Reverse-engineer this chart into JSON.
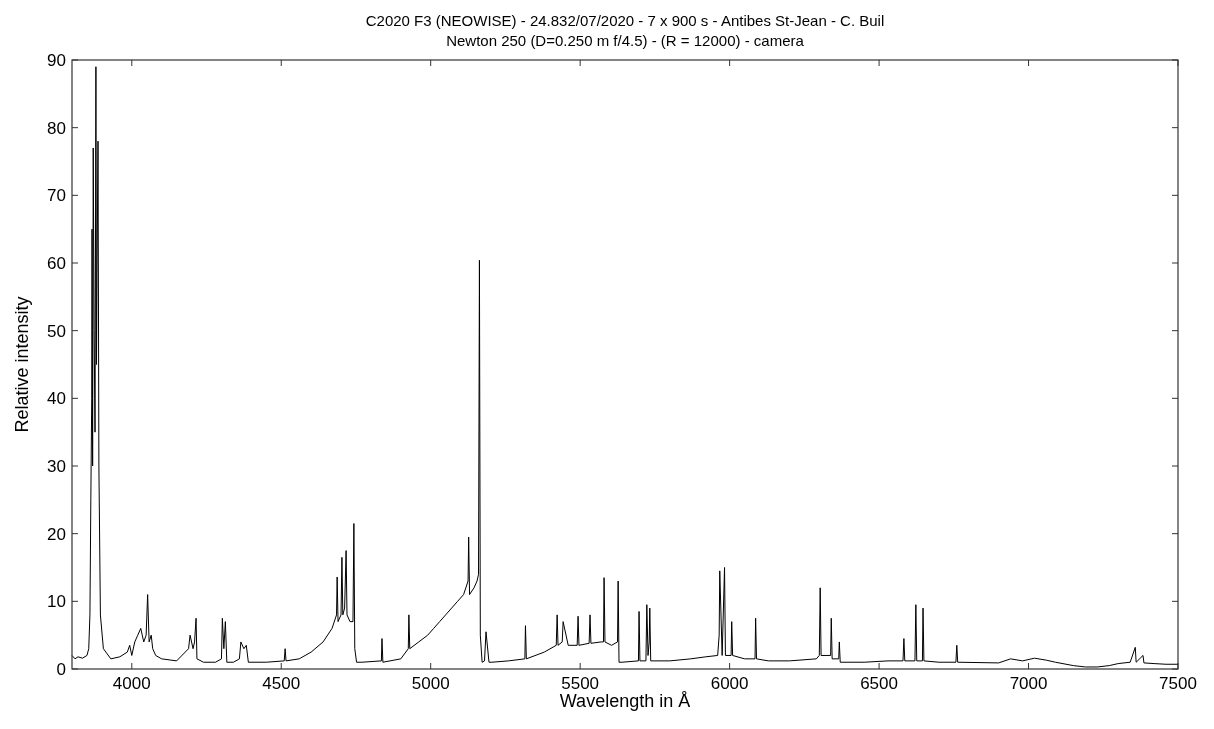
{
  "chart_data": {
    "type": "line",
    "title": "C2020 F3 (NEOWISE) - 24.832/07/2020 - 7 x 900 s - Antibes St-Jean - C. Buil",
    "subtitle": "Newton 250  (D=0.250 m f/4.5) - (R = 12000) - camera",
    "xlabel": "Wavelength in Å",
    "ylabel": "Relative intensity",
    "xlim": [
      3800,
      7500
    ],
    "ylim": [
      0,
      90
    ],
    "xticks": [
      4000,
      4500,
      5000,
      5500,
      6000,
      6500,
      7000,
      7500
    ],
    "yticks": [
      0,
      10,
      20,
      30,
      40,
      50,
      60,
      70,
      80,
      90
    ],
    "grid": false,
    "line_style": "solid",
    "series": [
      {
        "color": "#000000",
        "x": [
          3800,
          3810,
          3820,
          3835,
          3850,
          3856,
          3860,
          3863,
          3866,
          3867,
          3869,
          3871,
          3874,
          3877,
          3880,
          3882,
          3884,
          3887,
          3890,
          3895,
          3905,
          3930,
          3960,
          3985,
          3993,
          4000,
          4010,
          4020,
          4030,
          4040,
          4048,
          4053,
          4058,
          4065,
          4070,
          4080,
          4100,
          4150,
          4190,
          4195,
          4205,
          4210,
          4215,
          4218,
          4240,
          4280,
          4300,
          4303,
          4308,
          4313,
          4318,
          4340,
          4360,
          4365,
          4375,
          4383,
          4390,
          4450,
          4510,
          4513,
          4516,
          4560,
          4600,
          4640,
          4670,
          4685,
          4687,
          4690,
          4700,
          4703,
          4706,
          4712,
          4717,
          4720,
          4730,
          4740,
          4743,
          4746,
          4752,
          4770,
          4835,
          4837,
          4840,
          4900,
          4925,
          4927,
          4930,
          4960,
          4990,
          5010,
          5030,
          5050,
          5070,
          5090,
          5110,
          5125,
          5127,
          5130,
          5145,
          5155,
          5160,
          5163,
          5166,
          5172,
          5180,
          5185,
          5195,
          5205,
          5260,
          5315,
          5317,
          5320,
          5380,
          5420,
          5423,
          5426,
          5440,
          5443,
          5460,
          5490,
          5493,
          5496,
          5530,
          5533,
          5536,
          5570,
          5578,
          5580,
          5583,
          5605,
          5625,
          5627,
          5630,
          5640,
          5695,
          5697,
          5700,
          5720,
          5723,
          5727,
          5731,
          5733,
          5736,
          5800,
          5870,
          5920,
          5960,
          5965,
          5967,
          5975,
          5983,
          5986,
          6005,
          6007,
          6010,
          6050,
          6085,
          6087,
          6090,
          6130,
          6200,
          6290,
          6300,
          6303,
          6306,
          6338,
          6340,
          6343,
          6365,
          6367,
          6370,
          6450,
          6530,
          6580,
          6583,
          6586,
          6620,
          6623,
          6626,
          6645,
          6647,
          6650,
          6700,
          6757,
          6760,
          6763,
          6900,
          6940,
          6980,
          7020,
          7060,
          7090,
          7150,
          7190,
          7230,
          7270,
          7300,
          7340,
          7357,
          7360,
          7383,
          7386,
          7420,
          7460,
          7500
        ],
        "values": [
          2,
          1.5,
          1.8,
          1.6,
          2,
          3,
          8,
          25,
          40,
          65,
          30,
          77,
          50,
          35,
          89,
          45,
          60,
          78,
          30,
          8,
          3,
          1.5,
          1.8,
          2.5,
          3.5,
          2,
          4,
          5,
          6,
          4,
          5,
          11,
          4,
          5,
          3,
          2,
          1.5,
          1.2,
          3,
          5,
          3,
          4,
          7.5,
          1.5,
          1,
          1,
          1.5,
          7.5,
          3,
          7,
          1,
          1,
          1.5,
          4,
          3,
          3.5,
          1,
          1,
          1.2,
          3,
          1.2,
          1.5,
          2.5,
          4,
          6,
          8,
          13.6,
          7,
          8,
          16.5,
          8,
          9,
          17.5,
          8,
          7,
          7,
          21.5,
          3,
          1,
          1,
          1.2,
          4.5,
          1,
          1.5,
          3,
          8,
          3,
          4,
          5,
          6,
          7,
          8,
          9,
          10,
          11,
          13,
          19.5,
          11,
          12,
          13,
          14,
          60.4,
          5,
          1,
          1.2,
          5.5,
          1,
          1,
          1.2,
          1.5,
          6.4,
          1.5,
          2.5,
          3.5,
          8,
          3.5,
          4,
          7,
          3.5,
          3.5,
          7.8,
          3.5,
          3.8,
          8,
          3.8,
          4,
          4,
          13.5,
          4,
          3.5,
          4,
          13,
          1,
          1,
          1.2,
          8.5,
          1.2,
          1.2,
          9.5,
          2,
          4,
          9,
          1.2,
          1.2,
          1.5,
          1.8,
          2,
          5,
          14.5,
          2,
          15,
          2,
          2,
          7,
          2,
          1.5,
          1.5,
          7.5,
          1.5,
          1.2,
          1.2,
          1.5,
          2,
          12,
          2,
          2,
          7.5,
          1.5,
          1.5,
          4,
          1,
          1,
          1.2,
          1.2,
          4.5,
          1.2,
          1.2,
          9.5,
          1.2,
          1.2,
          9,
          1.2,
          1,
          1,
          3.5,
          1,
          0.9,
          1.5,
          1.2,
          1.6,
          1.3,
          1,
          0.5,
          0.3,
          0.3,
          0.5,
          0.8,
          1,
          3.2,
          1,
          2,
          0.9,
          0.8,
          0.7,
          0.7
        ]
      }
    ]
  }
}
